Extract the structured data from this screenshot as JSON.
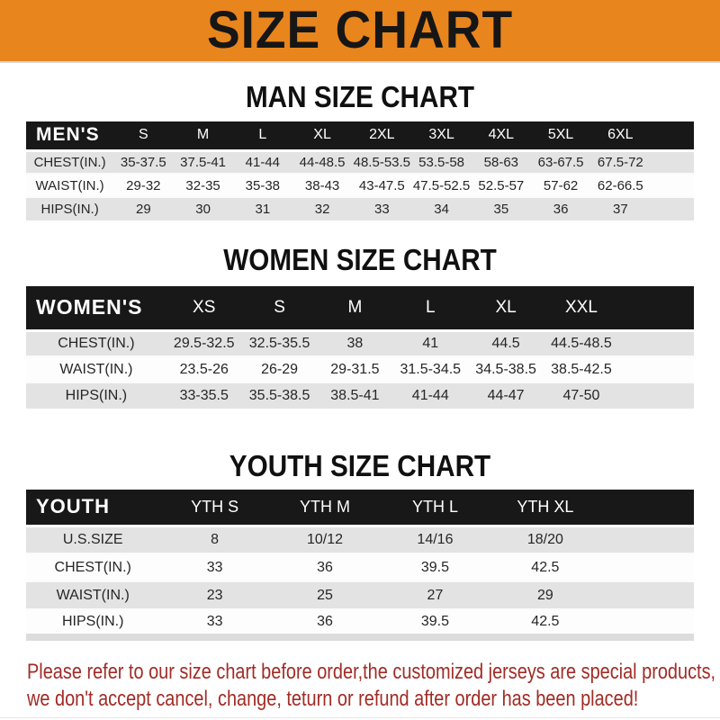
{
  "banner": {
    "title": "SIZE CHART"
  },
  "sections": [
    {
      "title": "MAN SIZE CHART",
      "header_label": "MEN'S",
      "columns": [
        "S",
        "M",
        "L",
        "XL",
        "2XL",
        "3XL",
        "4XL",
        "5XL",
        "6XL"
      ],
      "rows": [
        {
          "label": "CHEST(IN.)",
          "values": [
            "35-37.5",
            "37.5-41",
            "41-44",
            "44-48.5",
            "48.5-53.5",
            "53.5-58",
            "58-63",
            "63-67.5",
            "67.5-72"
          ]
        },
        {
          "label": "WAIST(IN.)",
          "values": [
            "29-32",
            "32-35",
            "35-38",
            "38-43",
            "43-47.5",
            "47.5-52.5",
            "52.5-57",
            "57-62",
            "62-66.5"
          ]
        },
        {
          "label": "HIPS(IN.)",
          "values": [
            "29",
            "30",
            "31",
            "32",
            "33",
            "34",
            "35",
            "36",
            "37"
          ]
        }
      ]
    },
    {
      "title": "WOMEN SIZE CHART",
      "header_label": "WOMEN'S",
      "columns": [
        "XS",
        "S",
        "M",
        "L",
        "XL",
        "XXL"
      ],
      "rows": [
        {
          "label": "CHEST(IN.)",
          "values": [
            "29.5-32.5",
            "32.5-35.5",
            "38",
            "41",
            "44.5",
            "44.5-48.5"
          ]
        },
        {
          "label": "WAIST(IN.)",
          "values": [
            "23.5-26",
            "26-29",
            "29-31.5",
            "31.5-34.5",
            "34.5-38.5",
            "38.5-42.5"
          ]
        },
        {
          "label": "HIPS(IN.)",
          "values": [
            "33-35.5",
            "35.5-38.5",
            "38.5-41",
            "41-44",
            "44-47",
            "47-50"
          ]
        }
      ]
    },
    {
      "title": "YOUTH SIZE CHART",
      "header_label": "YOUTH",
      "columns": [
        "YTH S",
        "YTH M",
        "YTH L",
        "YTH XL"
      ],
      "rows": [
        {
          "label": "U.S.SIZE",
          "values": [
            "8",
            "10/12",
            "14/16",
            "18/20"
          ]
        },
        {
          "label": "CHEST(IN.)",
          "values": [
            "33",
            "36",
            "39.5",
            "42.5"
          ]
        },
        {
          "label": "WAIST(IN.)",
          "values": [
            "23",
            "25",
            "27",
            "29"
          ]
        },
        {
          "label": "HIPS(IN.)",
          "values": [
            "33",
            "36",
            "39.5",
            "42.5"
          ]
        }
      ]
    }
  ],
  "footer": {
    "lines": [
      "Please refer to our size chart before order,the customized jerseys are special products,",
      "we don't accept cancel, change, teturn or refund after order has been placed!"
    ]
  },
  "colors": {
    "accent_orange": "#E9851D",
    "bar_black": "#181818",
    "row_gray": "#E3E3E3",
    "footer_red": "#A12C26"
  }
}
